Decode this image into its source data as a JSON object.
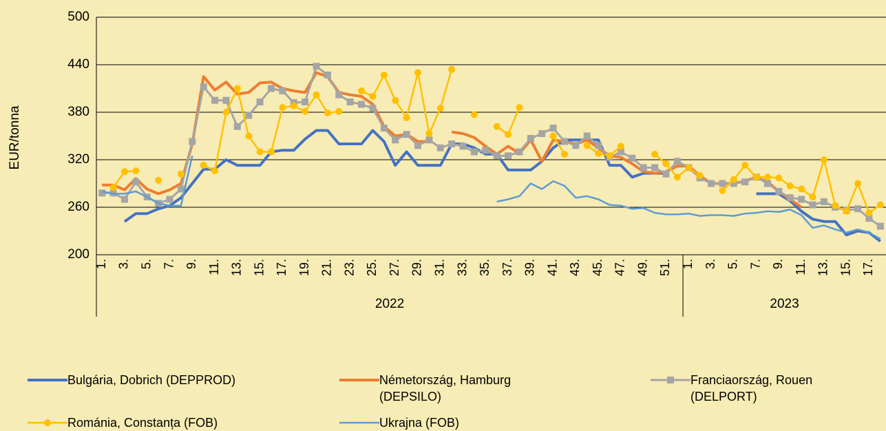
{
  "chart_data": {
    "type": "line",
    "y_label": "EUR/tonna",
    "ylim": [
      200,
      500
    ],
    "yticks": [
      200,
      260,
      320,
      380,
      440,
      500
    ],
    "grid": true,
    "legend": "bottom",
    "categories": [
      "1.",
      null,
      "3.",
      null,
      "5.",
      null,
      "7.",
      null,
      "9.",
      null,
      "11.",
      null,
      "13.",
      null,
      "15.",
      null,
      "17.",
      null,
      "19.",
      null,
      "21.",
      null,
      "23.",
      null,
      "25.",
      null,
      "27.",
      null,
      "29.",
      null,
      "31.",
      null,
      "33.",
      null,
      "35.",
      null,
      "37.",
      null,
      "39.",
      null,
      "41.",
      null,
      "43.",
      null,
      "45.",
      null,
      "47.",
      null,
      "49.",
      null,
      "51.",
      null,
      "1.",
      null,
      "3.",
      null,
      "5.",
      null,
      "7.",
      null,
      "9.",
      null,
      "11.",
      null,
      "13.",
      null,
      "15.",
      null,
      "17.",
      null
    ],
    "category_groups": [
      {
        "label": "2022",
        "count": 52
      },
      {
        "label": "2023",
        "count": 18
      }
    ],
    "series": [
      {
        "name": "Bulgária, Dobrich (DEPPROD)",
        "color": "#4472c4",
        "width": 4,
        "marker": null,
        "values": [
          null,
          null,
          242,
          252,
          252,
          258,
          262,
          272,
          290,
          308,
          308,
          320,
          313,
          313,
          313,
          330,
          332,
          332,
          346,
          357,
          357,
          340,
          340,
          340,
          357,
          343,
          313,
          330,
          313,
          313,
          313,
          340,
          340,
          335,
          327,
          327,
          307,
          307,
          307,
          318,
          335,
          345,
          345,
          345,
          345,
          313,
          313,
          298,
          303,
          303,
          303,
          null,
          null,
          null,
          null,
          null,
          null,
          null,
          277,
          277,
          277,
          268,
          255,
          245,
          242,
          242,
          225,
          230,
          228,
          217
        ]
      },
      {
        "name": "Németország, Hamburg (DEPSILO)",
        "color": "#ed7d31",
        "width": 4,
        "marker": null,
        "values": [
          288,
          288,
          282,
          296,
          283,
          277,
          282,
          290,
          340,
          425,
          408,
          418,
          403,
          405,
          417,
          418,
          410,
          407,
          405,
          430,
          425,
          405,
          402,
          400,
          390,
          362,
          350,
          352,
          343,
          343,
          null,
          355,
          353,
          348,
          337,
          327,
          337,
          328,
          345,
          318,
          345,
          343,
          340,
          345,
          335,
          325,
          323,
          315,
          305,
          303,
          305,
          312,
          312,
          300,
          290,
          290,
          290,
          293,
          298,
          292,
          280,
          270,
          260,
          null,
          null,
          null,
          null,
          null,
          null,
          null
        ]
      },
      {
        "name": "Franciaország, Rouen (DELPORT)",
        "color": "#a5a5a5",
        "width": 3,
        "marker": "square",
        "values": [
          278,
          278,
          270,
          292,
          273,
          265,
          270,
          283,
          343,
          412,
          395,
          395,
          362,
          376,
          393,
          410,
          407,
          392,
          393,
          438,
          427,
          402,
          393,
          390,
          385,
          360,
          345,
          352,
          338,
          345,
          335,
          340,
          337,
          330,
          332,
          325,
          325,
          330,
          347,
          353,
          360,
          343,
          338,
          350,
          338,
          323,
          330,
          322,
          310,
          310,
          302,
          318,
          310,
          297,
          290,
          290,
          290,
          292,
          298,
          290,
          280,
          272,
          270,
          263,
          267,
          260,
          256,
          258,
          246,
          236
        ]
      },
      {
        "name": "Románia, Constanța (FOB)",
        "color": "#ffc000",
        "width": 2.5,
        "marker": "circle",
        "values": [
          null,
          285,
          305,
          306,
          null,
          294,
          null,
          302,
          null,
          313,
          306,
          380,
          410,
          350,
          330,
          330,
          386,
          388,
          381,
          402,
          379,
          381,
          null,
          407,
          400,
          427,
          395,
          373,
          430,
          353,
          385,
          434,
          null,
          377,
          null,
          362,
          352,
          386,
          null,
          null,
          350,
          327,
          null,
          338,
          328,
          325,
          337,
          null,
          null,
          327,
          315,
          298,
          310,
          300,
          null,
          281,
          295,
          313,
          298,
          298,
          297,
          287,
          283,
          273,
          320,
          262,
          255,
          290,
          253,
          263
        ]
      },
      {
        "name": "Ukrajna (FOB)",
        "color": "#5b9bd5",
        "width": 2.5,
        "marker": null,
        "values": [
          280,
          277,
          277,
          280,
          273,
          265,
          262,
          262,
          325,
          null,
          null,
          null,
          null,
          null,
          null,
          null,
          null,
          null,
          null,
          null,
          null,
          null,
          null,
          null,
          null,
          null,
          null,
          null,
          null,
          null,
          null,
          null,
          null,
          null,
          null,
          267,
          270,
          274,
          290,
          283,
          293,
          287,
          272,
          274,
          270,
          263,
          262,
          258,
          259,
          253,
          251,
          251,
          252,
          249,
          250,
          250,
          249,
          252,
          253,
          255,
          254,
          257,
          250,
          234,
          237,
          232,
          228,
          232,
          228,
          220
        ]
      }
    ]
  }
}
